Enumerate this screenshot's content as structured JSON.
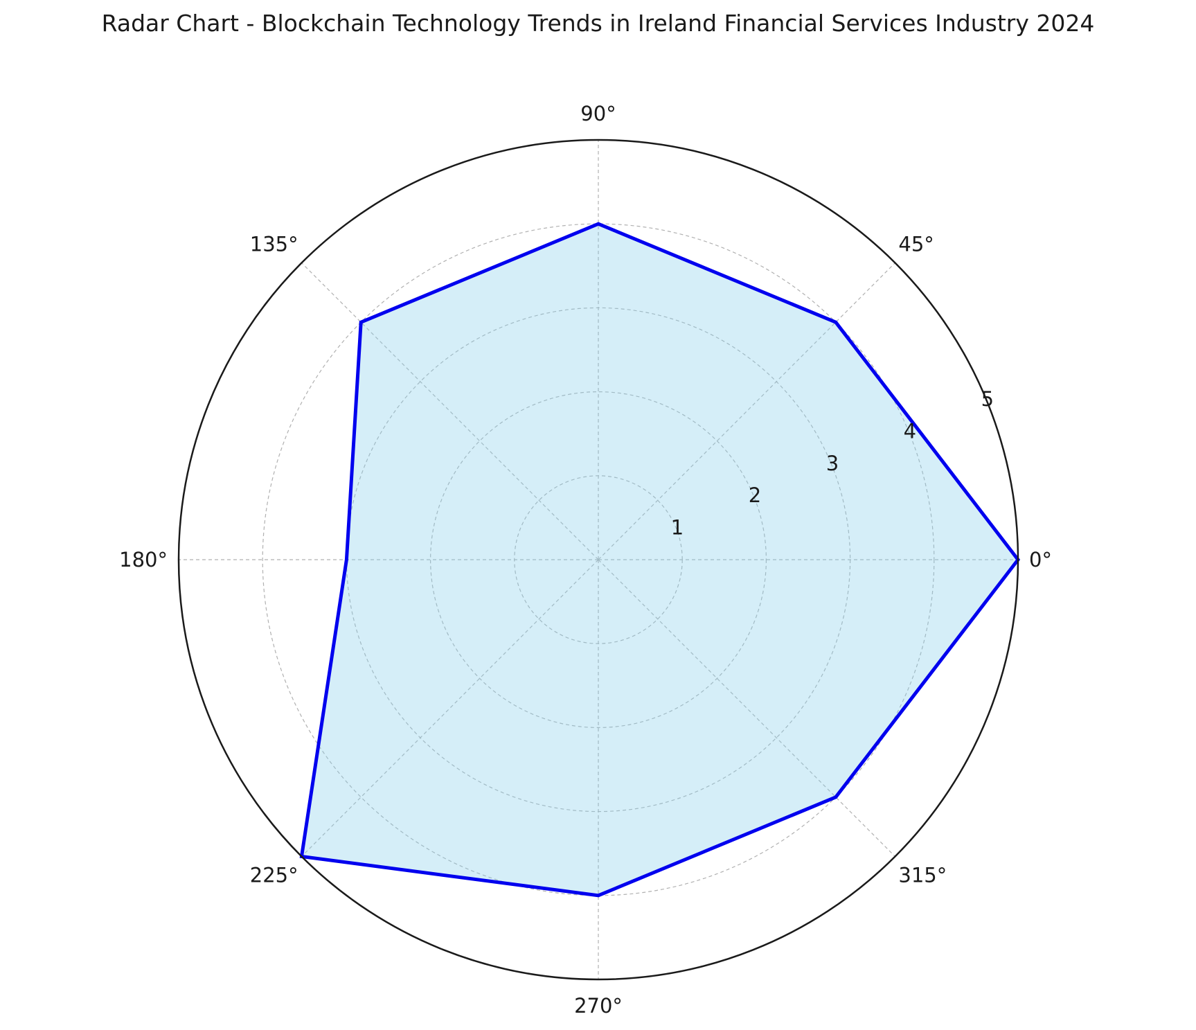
{
  "chart_data": {
    "type": "radar",
    "title": "Radar Chart - Blockchain Technology Trends in Ireland Financial Services Industry 2024",
    "angle_ticks": [
      "0°",
      "45°",
      "90°",
      "135°",
      "180°",
      "225°",
      "270°",
      "315°"
    ],
    "radial_ticks": [
      "1",
      "2",
      "3",
      "4",
      "5"
    ],
    "radial_tick_values": [
      1,
      2,
      3,
      4,
      5
    ],
    "rlim": [
      0,
      5
    ],
    "series": [
      {
        "angles_deg": [
          0,
          45,
          90,
          135,
          180,
          225,
          270,
          315
        ],
        "values": [
          5,
          4,
          4,
          4,
          3,
          5,
          4,
          4
        ]
      }
    ],
    "grid": true,
    "line_color": "#0000ee",
    "fill_color": "#87ceeb",
    "grid_color": "#b0b0b0"
  }
}
